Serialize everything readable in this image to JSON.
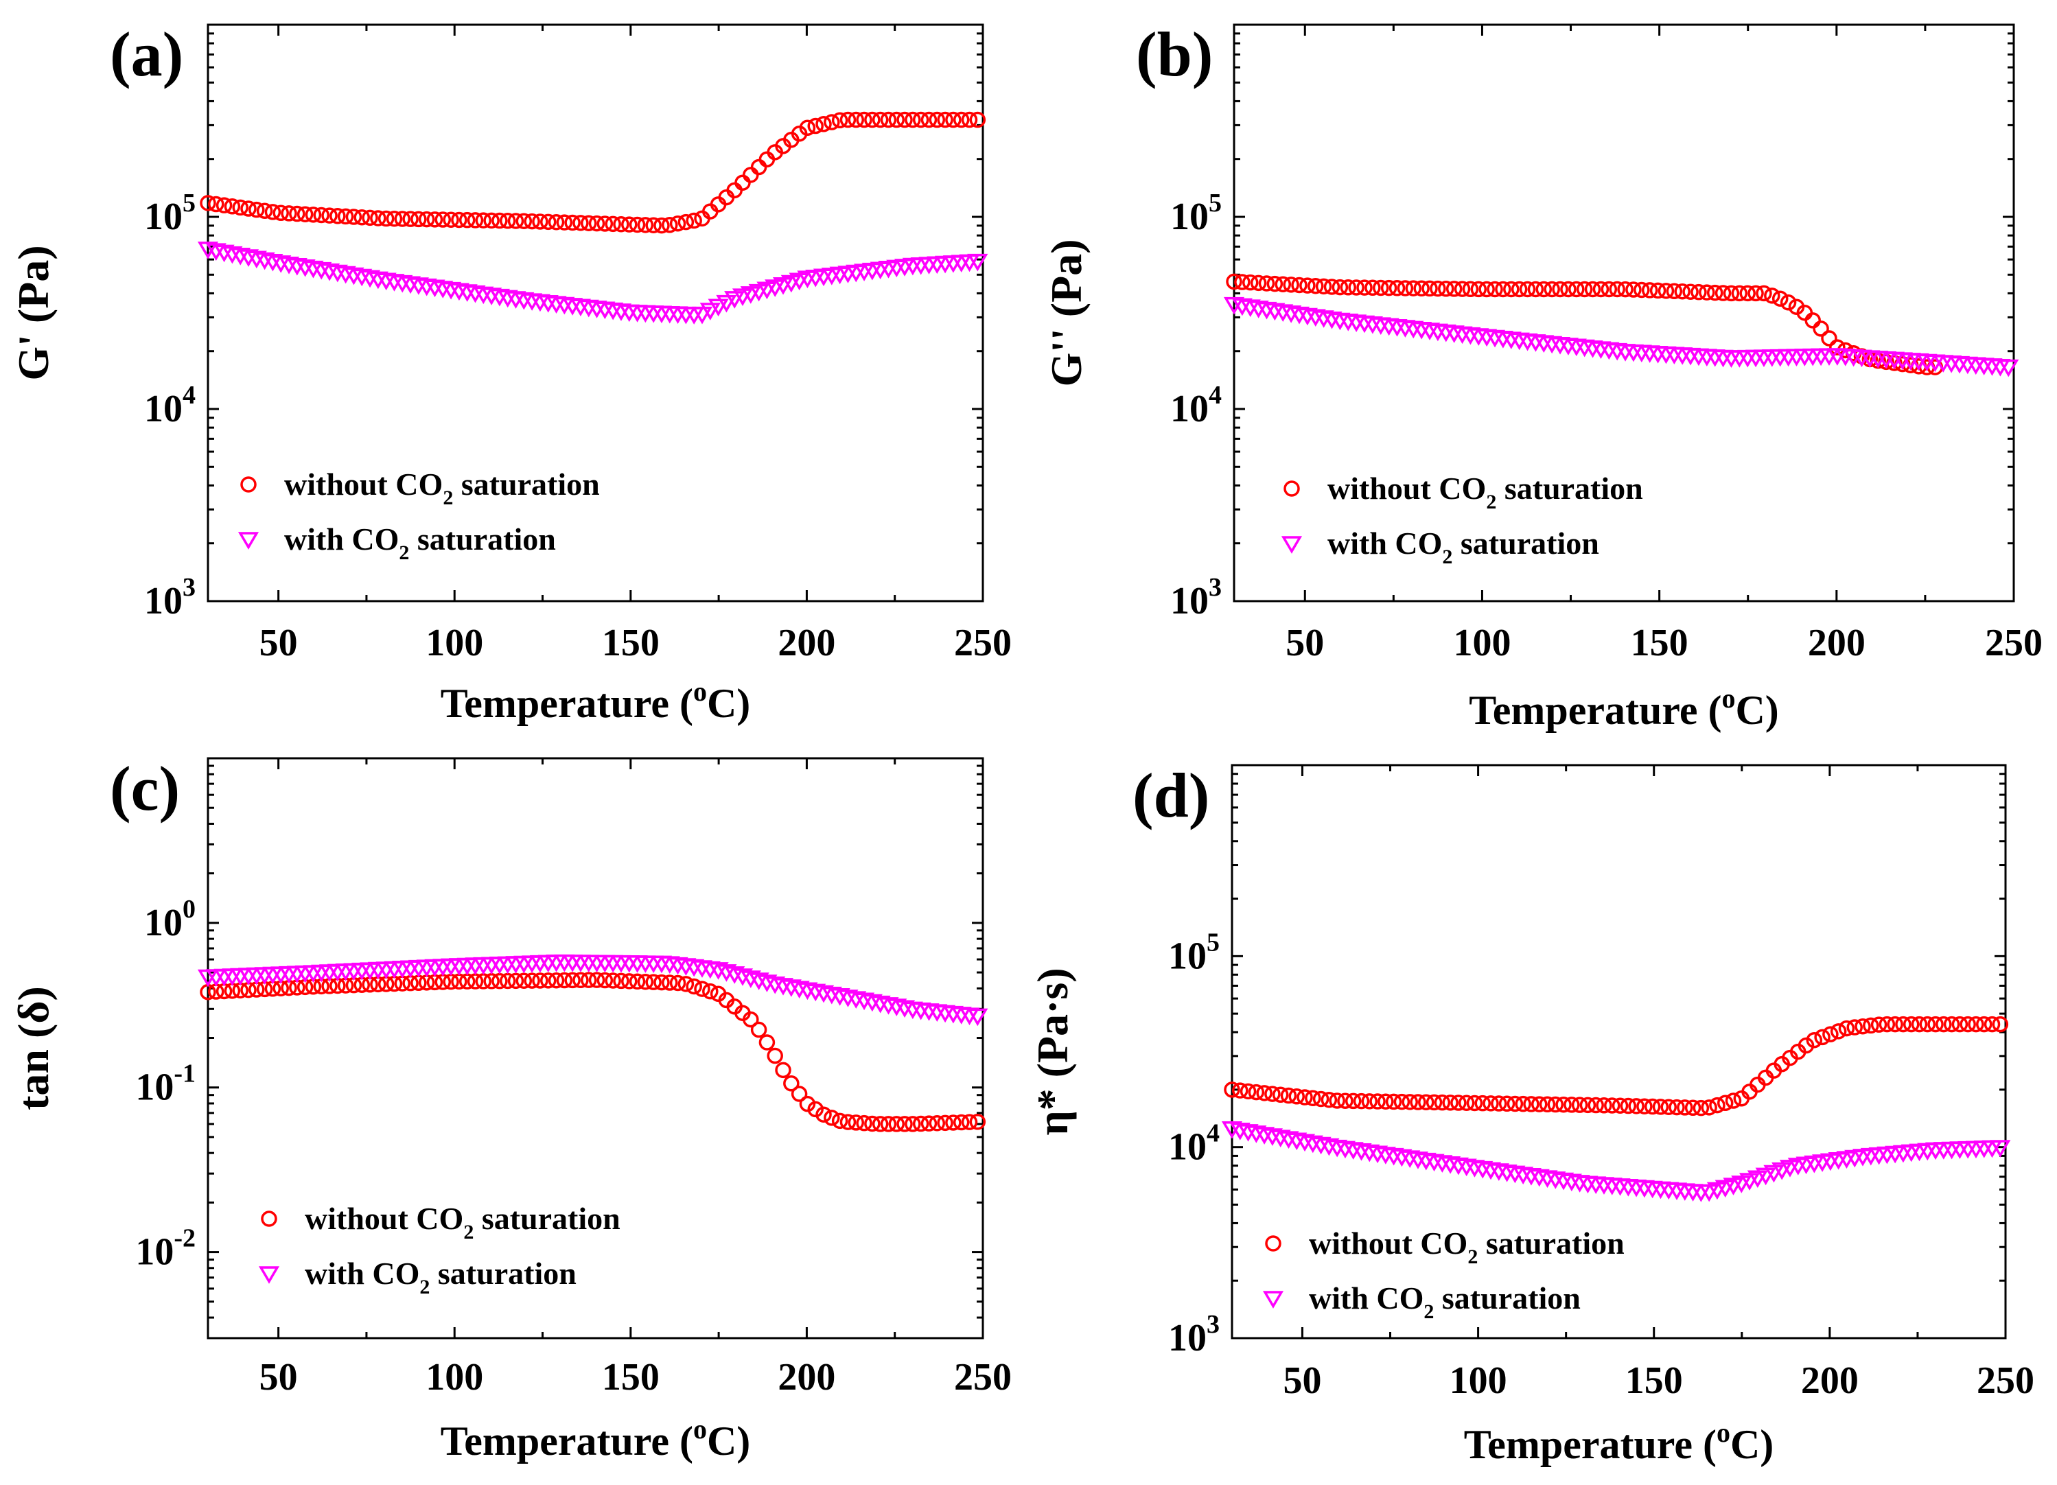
{
  "colors": {
    "without_co2": "#ff0000",
    "with_co2": "#ff00ff",
    "axis": "#000000"
  },
  "chart_data": [
    {
      "type": "scatter",
      "panel_label": "(a)",
      "title": "",
      "xlabel": {
        "main": "Temperature (",
        "superscript": "o",
        "suffix": "C)"
      },
      "ylabel": {
        "text": "G' (Pa)"
      },
      "xlim": [
        30,
        250
      ],
      "ylim": [
        1000,
        1000000
      ],
      "y_scale": "log",
      "x_ticks": [
        50,
        100,
        150,
        200,
        250
      ],
      "y_ticks": [
        {
          "value": 1000,
          "base": "10",
          "exp": "3"
        },
        {
          "value": 10000,
          "base": "10",
          "exp": "4"
        },
        {
          "value": 100000,
          "base": "10",
          "exp": "5"
        }
      ],
      "legend": {
        "placement": "lower-left",
        "entries": [
          {
            "prefix": "without CO",
            "sub": "2",
            "suffix": " saturation"
          },
          {
            "prefix": "with CO",
            "sub": "2",
            "suffix": " saturation"
          }
        ]
      },
      "series": [
        {
          "name": "without CO2 saturation",
          "marker": "circle",
          "x": [
            30,
            50,
            80,
            120,
            160,
            170,
            180,
            190,
            200,
            210,
            230,
            250
          ],
          "y": [
            118000,
            105000,
            98000,
            95000,
            90000,
            97000,
            140000,
            210000,
            290000,
            320000,
            320000,
            320000
          ]
        },
        {
          "name": "with CO2 saturation",
          "marker": "triangle-down",
          "x": [
            30,
            50,
            80,
            120,
            150,
            170,
            180,
            200,
            230,
            250
          ],
          "y": [
            68000,
            58000,
            47000,
            37000,
            32000,
            31000,
            38000,
            48000,
            56000,
            59000
          ]
        }
      ]
    },
    {
      "type": "scatter",
      "panel_label": "(b)",
      "title": "",
      "xlabel": {
        "main": "Temperature (",
        "superscript": "o",
        "suffix": "C)"
      },
      "ylabel": {
        "text": "G'' (Pa)"
      },
      "xlim": [
        30,
        250
      ],
      "ylim": [
        1000,
        1000000
      ],
      "y_scale": "log",
      "x_ticks": [
        50,
        100,
        150,
        200,
        250
      ],
      "y_ticks": [
        {
          "value": 1000,
          "base": "10",
          "exp": "3"
        },
        {
          "value": 10000,
          "base": "10",
          "exp": "4"
        },
        {
          "value": 100000,
          "base": "10",
          "exp": "5"
        }
      ],
      "legend": {
        "placement": "lower-left",
        "entries": [
          {
            "prefix": "without CO",
            "sub": "2",
            "suffix": " saturation"
          },
          {
            "prefix": "with CO",
            "sub": "2",
            "suffix": " saturation"
          }
        ]
      },
      "series": [
        {
          "name": "without CO2 saturation",
          "marker": "circle",
          "x": [
            30,
            60,
            100,
            140,
            170,
            180,
            185,
            190,
            195,
            200,
            210,
            225,
            230
          ],
          "y": [
            46000,
            43000,
            42000,
            42000,
            40000,
            40000,
            37000,
            33000,
            27000,
            21000,
            18000,
            16500,
            16500
          ]
        },
        {
          "name": "with CO2 saturation",
          "marker": "triangle-down",
          "x": [
            30,
            60,
            100,
            140,
            170,
            200,
            230,
            250
          ],
          "y": [
            35000,
            29000,
            24000,
            20000,
            18500,
            19000,
            17500,
            16500
          ]
        }
      ]
    },
    {
      "type": "scatter",
      "panel_label": "(c)",
      "title": "",
      "xlabel": {
        "main": "Temperature (",
        "superscript": "o",
        "suffix": "C)"
      },
      "ylabel": {
        "text": "tan (δ)"
      },
      "xlim": [
        30,
        250
      ],
      "ylim": [
        0.003,
        10
      ],
      "y_scale": "log",
      "x_ticks": [
        50,
        100,
        150,
        200,
        250
      ],
      "y_ticks": [
        {
          "value": 0.01,
          "base": "10",
          "exp": "-2"
        },
        {
          "value": 0.1,
          "base": "10",
          "exp": "-1"
        },
        {
          "value": 1,
          "base": "10",
          "exp": "0"
        }
      ],
      "legend": {
        "placement": "lower-left",
        "entries": [
          {
            "prefix": "without CO",
            "sub": "2",
            "suffix": " saturation"
          },
          {
            "prefix": "with CO",
            "sub": "2",
            "suffix": " saturation"
          }
        ]
      },
      "series": [
        {
          "name": "without CO2 saturation",
          "marker": "circle",
          "x": [
            30,
            60,
            100,
            140,
            165,
            175,
            185,
            190,
            195,
            200,
            205,
            210,
            220,
            230,
            250
          ],
          "y": [
            0.38,
            0.41,
            0.44,
            0.45,
            0.43,
            0.37,
            0.25,
            0.17,
            0.11,
            0.08,
            0.068,
            0.062,
            0.06,
            0.06,
            0.062
          ]
        },
        {
          "name": "with CO2 saturation",
          "marker": "triangle-down",
          "x": [
            30,
            60,
            100,
            130,
            160,
            175,
            190,
            210,
            230,
            250
          ],
          "y": [
            0.47,
            0.5,
            0.55,
            0.58,
            0.57,
            0.52,
            0.43,
            0.36,
            0.3,
            0.27
          ]
        }
      ]
    },
    {
      "type": "scatter",
      "panel_label": "(d)",
      "title": "",
      "xlabel": {
        "main": "Temperature (",
        "superscript": "o",
        "suffix": "C)"
      },
      "ylabel": {
        "text": "η* (Pa·s)"
      },
      "xlim": [
        30,
        250
      ],
      "ylim": [
        1000,
        1000000
      ],
      "y_scale": "log",
      "x_ticks": [
        50,
        100,
        150,
        200,
        250
      ],
      "y_ticks": [
        {
          "value": 1000,
          "base": "10",
          "exp": "3"
        },
        {
          "value": 10000,
          "base": "10",
          "exp": "4"
        },
        {
          "value": 100000,
          "base": "10",
          "exp": "5"
        }
      ],
      "legend": {
        "placement": "lower-left",
        "entries": [
          {
            "prefix": "without CO",
            "sub": "2",
            "suffix": " saturation"
          },
          {
            "prefix": "with CO",
            "sub": "2",
            "suffix": " saturation"
          }
        ]
      },
      "series": [
        {
          "name": "without CO2 saturation",
          "marker": "circle",
          "x": [
            30,
            60,
            100,
            140,
            165,
            175,
            185,
            195,
            205,
            215,
            250
          ],
          "y": [
            20000,
            17500,
            17000,
            16500,
            16000,
            18000,
            26000,
            36000,
            42000,
            44000,
            44000
          ]
        },
        {
          "name": "with CO2 saturation",
          "marker": "triangle-down",
          "x": [
            30,
            60,
            100,
            130,
            165,
            175,
            190,
            210,
            230,
            250
          ],
          "y": [
            12500,
            10000,
            7800,
            6500,
            5800,
            6500,
            8000,
            9000,
            9700,
            10000
          ]
        }
      ]
    }
  ]
}
